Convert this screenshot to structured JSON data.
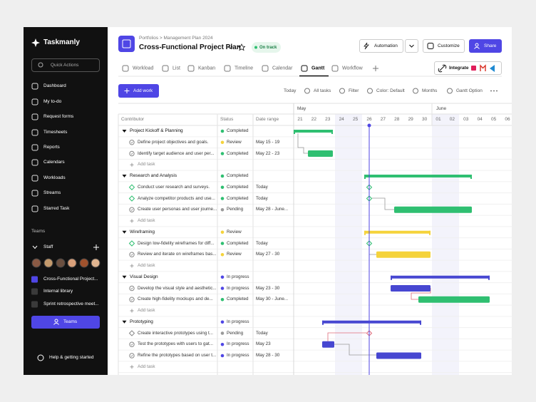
{
  "sidebar": {
    "brand": "Taskmanly",
    "search": "Quick Actions",
    "nav": [
      "Dashboard",
      "My to-do",
      "Request forms",
      "Timesheets",
      "Reports",
      "Calendars",
      "Workloads",
      "Streams",
      "Starred Task"
    ],
    "teams_heading": "Teams",
    "team": "Staff",
    "projects": [
      "Cross-Functional Project...",
      "Internal library",
      "Sprint retrospective meet..."
    ],
    "teams_button": "Teams",
    "help": "Help & getting started"
  },
  "header": {
    "breadcrumb": "Portfolios > Management Plan 2024",
    "title": "Cross-Functional Project Plan",
    "status": "On track",
    "automation": "Automation",
    "customize": "Customize",
    "share": "Share"
  },
  "tabs": [
    "Workload",
    "List",
    "Kanban",
    "Timeline",
    "Calendar",
    "Gantt",
    "Workflow"
  ],
  "integrate": "Integrate",
  "toolbar": {
    "add": "Add work",
    "items": [
      "Today",
      "All tasks",
      "Filter",
      "Color: Default",
      "Months",
      "Gantt Option"
    ]
  },
  "table": {
    "columns": [
      "Contributor",
      "Status",
      "Date range"
    ],
    "add_task": "Add task",
    "status_colors": {
      "Completed": "#2fbf71",
      "Review": "#f5d33b",
      "In progress": "#4f46e5",
      "Pending": "#9a9a9a"
    },
    "groups": [
      {
        "name": "Project Kickoff & Planning",
        "status": "Completed",
        "tasks": [
          {
            "name": "Define project objectives and goals.",
            "status": "Review",
            "date": "May 15 - 19"
          },
          {
            "name": "Identify target audience and user per...",
            "status": "Completed",
            "date": "May 22 - 23"
          }
        ]
      },
      {
        "name": "Research and Analysis",
        "status": "Completed",
        "tasks": [
          {
            "name": "Conduct user research and surveys.",
            "status": "Completed",
            "date": "Today"
          },
          {
            "name": "Analyze competitor products and use...",
            "status": "Completed",
            "date": "Today"
          },
          {
            "name": "Create user personas and user journe...",
            "status": "Pending",
            "date": "May 28 - June..."
          }
        ]
      },
      {
        "name": "Wireframing",
        "status": "Review",
        "tasks": [
          {
            "name": "Design low-fidelity wireframes for diff...",
            "status": "Completed",
            "date": "Today"
          },
          {
            "name": "Review and iterate on wireframes bas...",
            "status": "Review",
            "date": "May 27 - 30"
          }
        ]
      },
      {
        "name": "Visual Design",
        "status": "In progress",
        "tasks": [
          {
            "name": "Develop the visual style and aesthetic...",
            "status": "In progress",
            "date": "May 23 - 30"
          },
          {
            "name": "Create high-fidelity mockups and de...",
            "status": "Completed",
            "date": "May 30 - June..."
          }
        ]
      },
      {
        "name": "Prototyping",
        "status": "In progress",
        "tasks": [
          {
            "name": "Create interactive prototypes using t...",
            "status": "Pending",
            "date": "Today"
          },
          {
            "name": "Test the prototypes with users to gat...",
            "status": "In progress",
            "date": "May 23"
          },
          {
            "name": "Refine the prototypes based on user t...",
            "status": "In progress",
            "date": "May 28 - 30"
          }
        ]
      }
    ]
  },
  "gantt": {
    "months": [
      "May",
      "June"
    ],
    "days": [
      "21",
      "22",
      "23",
      "24",
      "25",
      "26",
      "27",
      "28",
      "29",
      "30",
      "01",
      "02",
      "03",
      "04",
      "05",
      "06"
    ]
  }
}
